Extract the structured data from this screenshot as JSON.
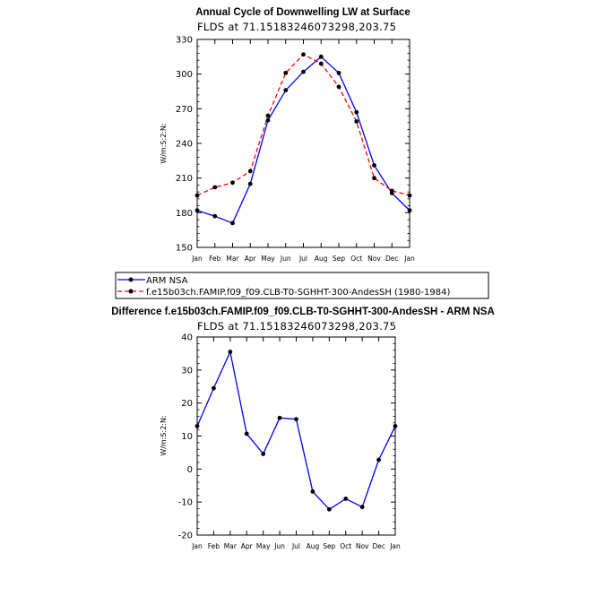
{
  "chart_data": [
    {
      "type": "line",
      "title": "Annual Cycle of Downwelling LW at Surface",
      "subtitle": "FLDS at 71.15183246073298,203.75",
      "ylabel": "W/m:S:2:N:",
      "xlabel": "",
      "categories": [
        "Jan",
        "Feb",
        "Mar",
        "Apr",
        "May",
        "Jun",
        "Jul",
        "Aug",
        "Sep",
        "Oct",
        "Nov",
        "Dec",
        "Jan"
      ],
      "ylim": [
        150,
        330
      ],
      "yticks": [
        150,
        180,
        210,
        240,
        270,
        300,
        330
      ],
      "grid": false,
      "legend_position": "bottom",
      "series": [
        {
          "name": "ARM NSA",
          "color": "#0000ff",
          "line_style": "solid",
          "values": [
            182,
            177,
            171,
            205,
            260,
            286,
            302,
            315,
            301,
            267,
            221,
            197,
            182
          ]
        },
        {
          "name": "f.e15b03ch.FAMIP.f09_f09.CLB-T0-SGHHT-300-AndesSH (1980-1984)",
          "color": "#ff0000",
          "line_style": "dashed",
          "values": [
            195,
            202,
            206,
            216,
            264,
            301,
            317,
            309,
            289,
            259,
            210,
            199,
            195
          ]
        }
      ]
    },
    {
      "type": "line",
      "title": "Difference f.e15b03ch.FAMIP.f09_f09.CLB-T0-SGHHT-300-AndesSH - ARM NSA",
      "subtitle": "FLDS at 71.15183246073298,203.75",
      "ylabel": "W/m:S:2:N:",
      "xlabel": "",
      "categories": [
        "Jan",
        "Feb",
        "Mar",
        "Apr",
        "May",
        "Jun",
        "Jul",
        "Aug",
        "Sep",
        "Oct",
        "Nov",
        "Dec",
        "Jan"
      ],
      "ylim": [
        -20,
        40
      ],
      "yticks": [
        -20,
        -10,
        0,
        10,
        20,
        30,
        40
      ],
      "grid": false,
      "series": [
        {
          "color": "#0000ff",
          "line_style": "solid",
          "values": [
            13,
            24.5,
            35.5,
            10.7,
            4.6,
            15.5,
            15.1,
            -6.8,
            -12.2,
            -9,
            -11.5,
            2.8,
            13
          ]
        }
      ]
    }
  ]
}
